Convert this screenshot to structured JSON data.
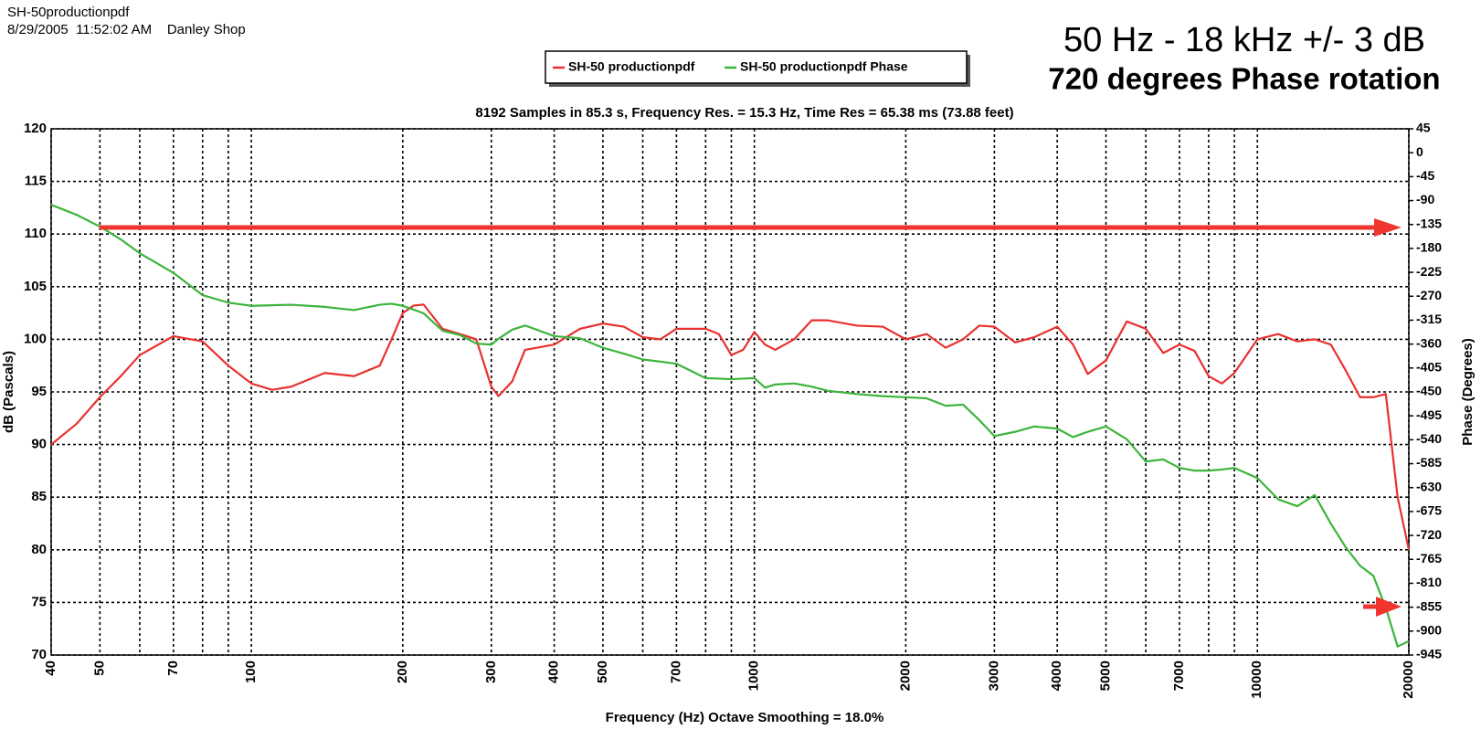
{
  "chart_data": {
    "type": "line",
    "header": [
      "SH-50productionpdf",
      "8/29/2005  11:52:02 AM    Danley Shop"
    ],
    "annotations": [
      "50 Hz - 18 kHz +/- 3 dB",
      "720 degrees Phase rotation"
    ],
    "title": "8192 Samples in 85.3 s, Frequency Res. = 15.3 Hz, Time Res = 65.38 ms (73.88 feet)",
    "xlabel": "Frequency (Hz) Octave Smoothing = 18.0%",
    "ylabel": "dB (Pascals)",
    "y2label": "Phase (Degrees)",
    "xscale": "log",
    "xlim": [
      40,
      20000
    ],
    "xticks": [
      40,
      50,
      70,
      100,
      200,
      300,
      400,
      500,
      700,
      1000,
      2000,
      3000,
      4000,
      5000,
      7000,
      10000,
      20000
    ],
    "x_minor_grid": [
      60,
      80,
      90,
      600,
      800,
      900,
      6000,
      8000,
      9000
    ],
    "ylim": [
      70,
      120
    ],
    "yticks": [
      70,
      75,
      80,
      85,
      90,
      95,
      100,
      105,
      110,
      115,
      120
    ],
    "y2lim": [
      -945,
      45
    ],
    "y2ticks": [
      45,
      0,
      -45,
      -90,
      -135,
      -180,
      -225,
      -270,
      -315,
      -360,
      -405,
      -450,
      -495,
      -540,
      -585,
      -630,
      -675,
      -720,
      -765,
      -810,
      -855,
      -900,
      -945
    ],
    "grid": true,
    "x": [
      40,
      45,
      50,
      55,
      60,
      70,
      80,
      90,
      100,
      110,
      120,
      140,
      160,
      180,
      190,
      200,
      210,
      220,
      240,
      260,
      280,
      300,
      310,
      330,
      350,
      400,
      450,
      500,
      550,
      600,
      650,
      700,
      800,
      850,
      900,
      950,
      1000,
      1050,
      1100,
      1200,
      1300,
      1400,
      1600,
      1800,
      2000,
      2200,
      2400,
      2600,
      2800,
      3000,
      3300,
      3600,
      4000,
      4300,
      4600,
      5000,
      5500,
      6000,
      6500,
      7000,
      7500,
      8000,
      8500,
      9000,
      10000,
      11000,
      12000,
      13000,
      14000,
      15000,
      16000,
      17000,
      18000,
      19000,
      20000
    ],
    "series": [
      {
        "name": "SH-50 productionpdf",
        "color": "#e8312f",
        "axis": "y",
        "values": [
          90,
          92,
          94.5,
          96.5,
          98.5,
          100.3,
          99.8,
          97.5,
          95.8,
          95.2,
          95.5,
          96.8,
          96.5,
          97.5,
          100,
          102.5,
          103.2,
          103.3,
          101,
          100.5,
          100,
          95.5,
          94.6,
          96,
          99,
          99.5,
          101,
          101.5,
          101.2,
          100.2,
          100,
          101,
          101,
          100.5,
          98.5,
          99,
          100.7,
          99.5,
          99,
          100,
          101.8,
          101.8,
          101.3,
          101.2,
          100,
          100.5,
          99.2,
          100,
          101.3,
          101.2,
          99.7,
          100.2,
          101.2,
          99.5,
          96.7,
          98,
          101.7,
          101,
          98.7,
          99.5,
          98.9,
          96.5,
          95.8,
          96.8,
          100,
          100.5,
          99.8,
          100,
          99.5,
          97,
          94.5,
          94.5,
          94.8,
          85,
          80
        ]
      },
      {
        "name": "SH-50 productionpdf Phase",
        "color": "#3cb43c",
        "axis": "y2",
        "values": [
          -98,
          -117,
          -139,
          -163,
          -189,
          -226,
          -268,
          -282,
          -288,
          -287,
          -286,
          -290,
          -296,
          -286,
          -284,
          -288,
          -295,
          -302,
          -335,
          -343,
          -359,
          -361,
          -350,
          -333,
          -325,
          -345,
          -349,
          -367,
          -378,
          -389,
          -393,
          -397,
          -424,
          -425,
          -426,
          -425,
          -424,
          -442,
          -436,
          -434,
          -440,
          -448,
          -454,
          -458,
          -460,
          -462,
          -476,
          -474,
          -503,
          -533,
          -525,
          -515,
          -519,
          -535,
          -525,
          -515,
          -539,
          -581,
          -577,
          -593,
          -598,
          -598,
          -596,
          -593,
          -612,
          -652,
          -665,
          -644,
          -698,
          -743,
          -777,
          -796,
          -856,
          -929,
          -919
        ]
      }
    ]
  }
}
